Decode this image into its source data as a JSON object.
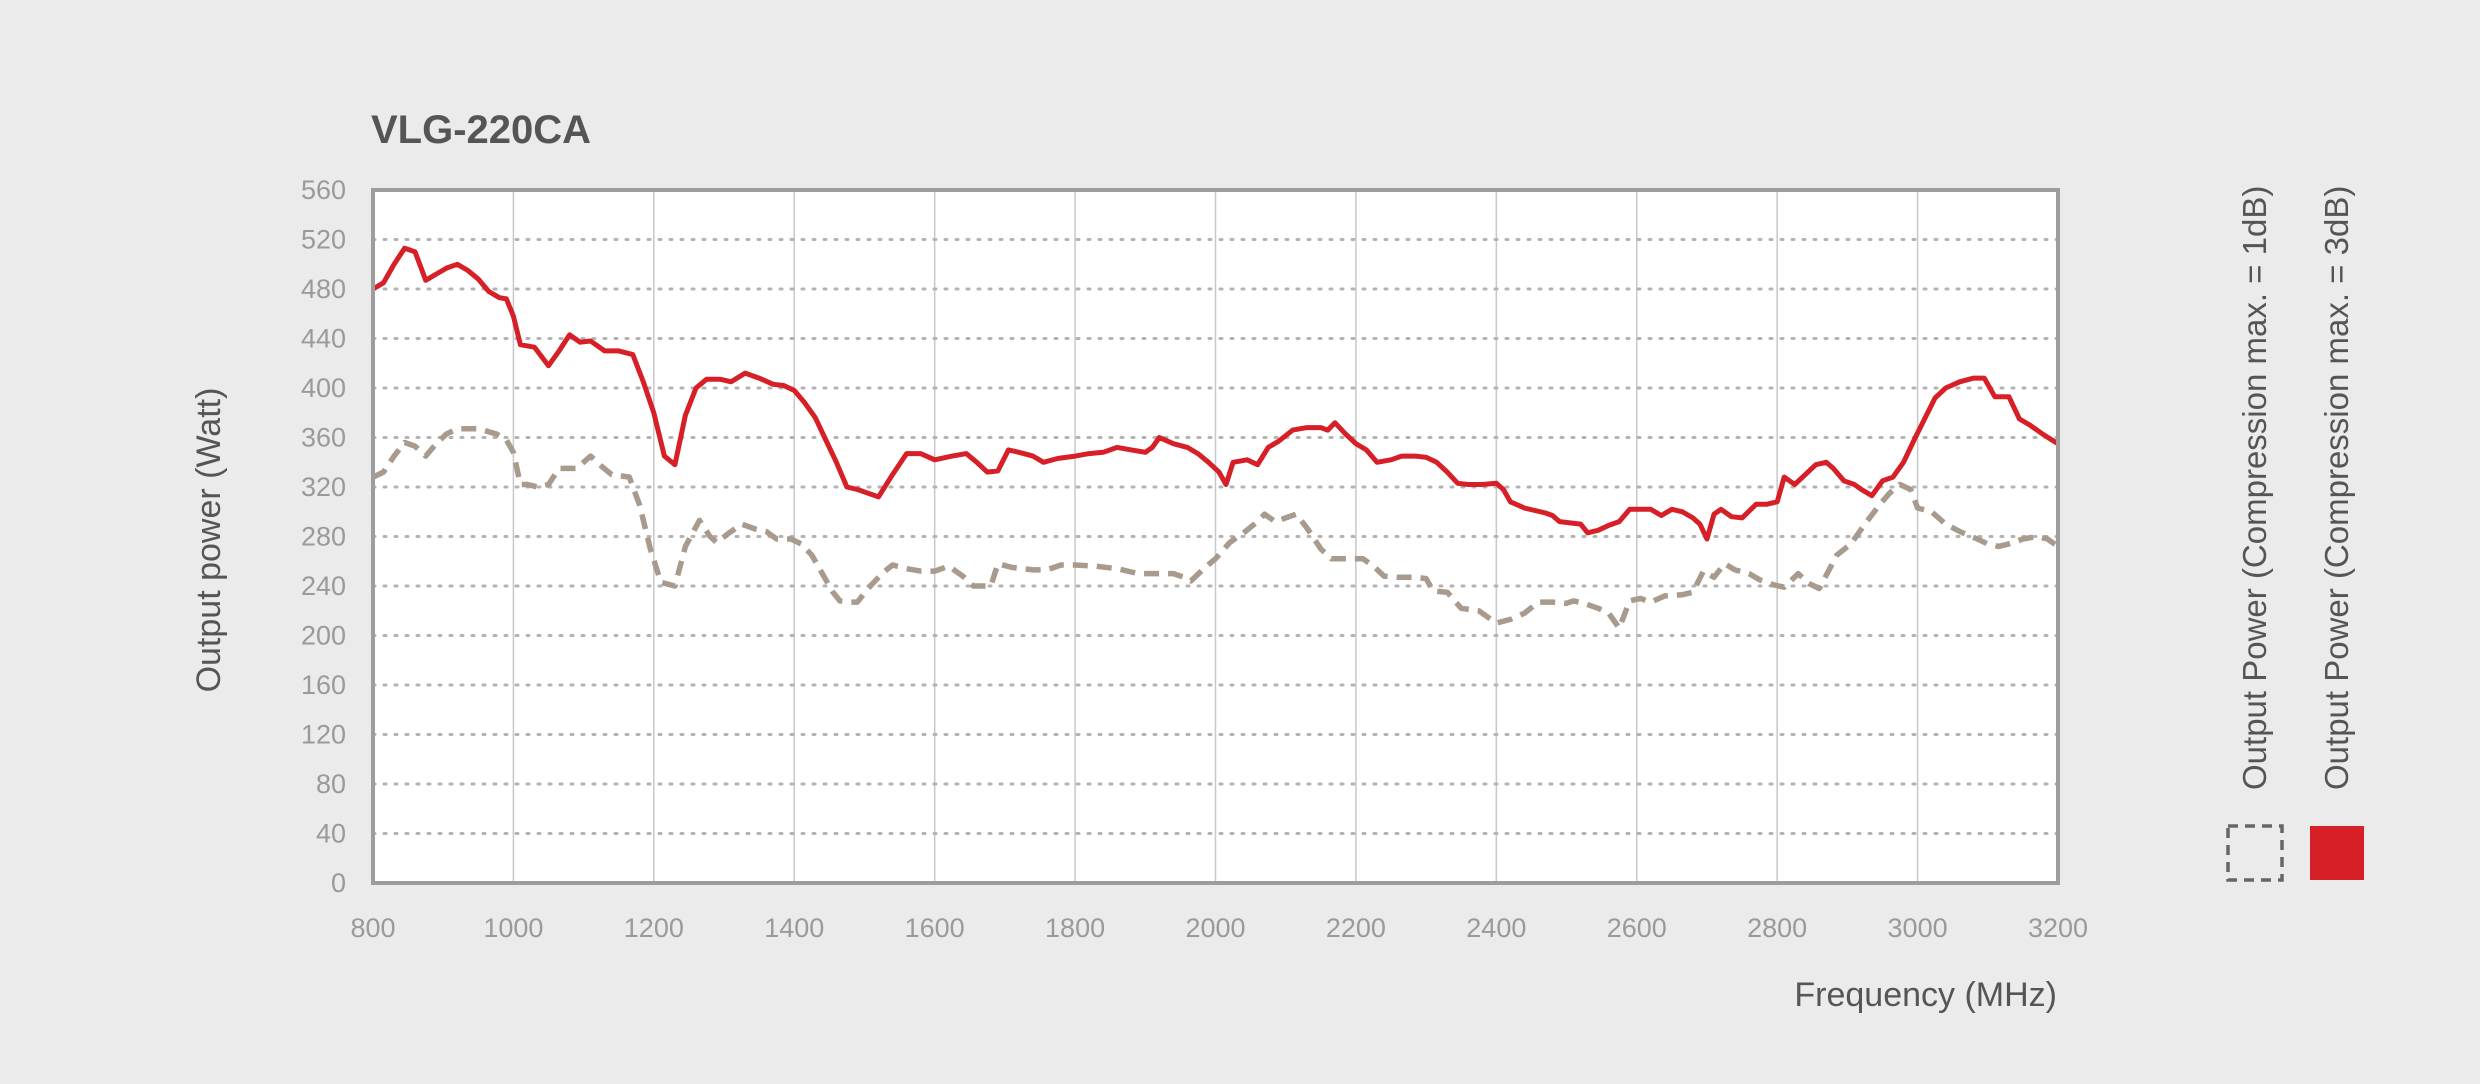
{
  "chart_data": {
    "type": "line",
    "title": "VLG-220CA",
    "xlabel": "Frequency (MHz)",
    "ylabel": "Output power (Watt)",
    "xlim": [
      800,
      3200
    ],
    "ylim": [
      0,
      560
    ],
    "x_ticks": [
      "800",
      "1000",
      "1200",
      "1400",
      "1600",
      "1800",
      "2000",
      "2200",
      "2400",
      "2600",
      "2800",
      "3000",
      "3200"
    ],
    "y_ticks": [
      "0",
      "40",
      "80",
      "120",
      "160",
      "200",
      "240",
      "280",
      "320",
      "360",
      "400",
      "440",
      "480",
      "520",
      "560"
    ],
    "grid": {
      "x": "solid",
      "y": "dotted"
    },
    "legend_position": "right, vertical",
    "series": [
      {
        "name": "Output Power (Compression max. = 1dB)",
        "color": "#a89a8d",
        "style": "dashed",
        "points": [
          [
            800,
            328
          ],
          [
            815,
            332
          ],
          [
            830,
            345
          ],
          [
            845,
            356
          ],
          [
            860,
            353
          ],
          [
            875,
            345
          ],
          [
            890,
            355
          ],
          [
            905,
            363
          ],
          [
            920,
            367
          ],
          [
            950,
            367
          ],
          [
            975,
            363
          ],
          [
            990,
            358
          ],
          [
            1000,
            348
          ],
          [
            1010,
            322
          ],
          [
            1020,
            322
          ],
          [
            1035,
            320
          ],
          [
            1050,
            322
          ],
          [
            1065,
            335
          ],
          [
            1090,
            335
          ],
          [
            1110,
            345
          ],
          [
            1125,
            337
          ],
          [
            1140,
            330
          ],
          [
            1165,
            328
          ],
          [
            1180,
            305
          ],
          [
            1195,
            270
          ],
          [
            1210,
            243
          ],
          [
            1230,
            240
          ],
          [
            1245,
            272
          ],
          [
            1265,
            293
          ],
          [
            1280,
            280
          ],
          [
            1290,
            275
          ],
          [
            1305,
            282
          ],
          [
            1325,
            290
          ],
          [
            1345,
            286
          ],
          [
            1360,
            284
          ],
          [
            1375,
            278
          ],
          [
            1395,
            278
          ],
          [
            1410,
            274
          ],
          [
            1425,
            265
          ],
          [
            1440,
            250
          ],
          [
            1455,
            235
          ],
          [
            1465,
            228
          ],
          [
            1480,
            227
          ],
          [
            1490,
            227
          ],
          [
            1505,
            238
          ],
          [
            1525,
            250
          ],
          [
            1540,
            257
          ],
          [
            1560,
            254
          ],
          [
            1580,
            252
          ],
          [
            1600,
            252
          ],
          [
            1620,
            256
          ],
          [
            1640,
            248
          ],
          [
            1655,
            240
          ],
          [
            1680,
            240
          ],
          [
            1690,
            258
          ],
          [
            1710,
            255
          ],
          [
            1740,
            253
          ],
          [
            1760,
            253
          ],
          [
            1780,
            257
          ],
          [
            1800,
            257
          ],
          [
            1830,
            256
          ],
          [
            1860,
            254
          ],
          [
            1890,
            250
          ],
          [
            1910,
            250
          ],
          [
            1930,
            250
          ],
          [
            1940,
            250
          ],
          [
            1955,
            247
          ],
          [
            1965,
            244
          ],
          [
            1985,
            255
          ],
          [
            2000,
            262
          ],
          [
            2020,
            275
          ],
          [
            2040,
            283
          ],
          [
            2060,
            292
          ],
          [
            2070,
            298
          ],
          [
            2085,
            292
          ],
          [
            2100,
            295
          ],
          [
            2115,
            298
          ],
          [
            2130,
            287
          ],
          [
            2150,
            270
          ],
          [
            2165,
            262
          ],
          [
            2185,
            262
          ],
          [
            2210,
            262
          ],
          [
            2225,
            256
          ],
          [
            2240,
            248
          ],
          [
            2260,
            247
          ],
          [
            2285,
            247
          ],
          [
            2300,
            246
          ],
          [
            2310,
            236
          ],
          [
            2330,
            235
          ],
          [
            2350,
            222
          ],
          [
            2375,
            220
          ],
          [
            2385,
            216
          ],
          [
            2400,
            210
          ],
          [
            2420,
            213
          ],
          [
            2440,
            218
          ],
          [
            2460,
            227
          ],
          [
            2480,
            227
          ],
          [
            2500,
            226
          ],
          [
            2510,
            228
          ],
          [
            2525,
            226
          ],
          [
            2545,
            222
          ],
          [
            2560,
            218
          ],
          [
            2575,
            206
          ],
          [
            2590,
            228
          ],
          [
            2605,
            230
          ],
          [
            2620,
            227
          ],
          [
            2640,
            232
          ],
          [
            2665,
            233
          ],
          [
            2680,
            235
          ],
          [
            2695,
            252
          ],
          [
            2710,
            247
          ],
          [
            2725,
            258
          ],
          [
            2740,
            253
          ],
          [
            2760,
            250
          ],
          [
            2775,
            245
          ],
          [
            2795,
            241
          ],
          [
            2810,
            239
          ],
          [
            2830,
            250
          ],
          [
            2845,
            242
          ],
          [
            2860,
            238
          ],
          [
            2885,
            265
          ],
          [
            2905,
            274
          ],
          [
            2925,
            290
          ],
          [
            2945,
            305
          ],
          [
            2960,
            315
          ],
          [
            2975,
            322
          ],
          [
            2990,
            318
          ],
          [
            3000,
            303
          ],
          [
            3020,
            300
          ],
          [
            3040,
            290
          ],
          [
            3060,
            284
          ],
          [
            3085,
            278
          ],
          [
            3100,
            274
          ],
          [
            3115,
            272
          ],
          [
            3130,
            274
          ],
          [
            3150,
            278
          ],
          [
            3170,
            280
          ],
          [
            3185,
            278
          ],
          [
            3200,
            272
          ]
        ]
      },
      {
        "name": "Output Power (Compression max. = 3dB)",
        "color": "#d71f27",
        "style": "solid",
        "points": [
          [
            800,
            480
          ],
          [
            815,
            485
          ],
          [
            830,
            500
          ],
          [
            845,
            513
          ],
          [
            860,
            510
          ],
          [
            875,
            487
          ],
          [
            890,
            492
          ],
          [
            905,
            497
          ],
          [
            920,
            500
          ],
          [
            935,
            495
          ],
          [
            950,
            488
          ],
          [
            965,
            478
          ],
          [
            980,
            473
          ],
          [
            990,
            472
          ],
          [
            1000,
            458
          ],
          [
            1010,
            435
          ],
          [
            1030,
            433
          ],
          [
            1050,
            418
          ],
          [
            1065,
            430
          ],
          [
            1080,
            443
          ],
          [
            1095,
            437
          ],
          [
            1110,
            438
          ],
          [
            1130,
            430
          ],
          [
            1150,
            430
          ],
          [
            1170,
            427
          ],
          [
            1185,
            405
          ],
          [
            1200,
            380
          ],
          [
            1215,
            345
          ],
          [
            1230,
            338
          ],
          [
            1245,
            378
          ],
          [
            1260,
            400
          ],
          [
            1275,
            407
          ],
          [
            1295,
            407
          ],
          [
            1310,
            405
          ],
          [
            1330,
            412
          ],
          [
            1350,
            408
          ],
          [
            1370,
            403
          ],
          [
            1385,
            402
          ],
          [
            1400,
            398
          ],
          [
            1415,
            388
          ],
          [
            1430,
            376
          ],
          [
            1445,
            358
          ],
          [
            1460,
            340
          ],
          [
            1475,
            320
          ],
          [
            1490,
            318
          ],
          [
            1505,
            315
          ],
          [
            1520,
            312
          ],
          [
            1540,
            330
          ],
          [
            1560,
            347
          ],
          [
            1580,
            347
          ],
          [
            1600,
            342
          ],
          [
            1625,
            345
          ],
          [
            1645,
            347
          ],
          [
            1660,
            340
          ],
          [
            1675,
            332
          ],
          [
            1690,
            333
          ],
          [
            1705,
            350
          ],
          [
            1720,
            348
          ],
          [
            1740,
            345
          ],
          [
            1755,
            340
          ],
          [
            1775,
            343
          ],
          [
            1800,
            345
          ],
          [
            1820,
            347
          ],
          [
            1840,
            348
          ],
          [
            1860,
            352
          ],
          [
            1880,
            350
          ],
          [
            1900,
            348
          ],
          [
            1910,
            352
          ],
          [
            1920,
            360
          ],
          [
            1940,
            355
          ],
          [
            1960,
            352
          ],
          [
            1975,
            347
          ],
          [
            1990,
            340
          ],
          [
            2005,
            332
          ],
          [
            2015,
            322
          ],
          [
            2025,
            340
          ],
          [
            2045,
            342
          ],
          [
            2060,
            338
          ],
          [
            2075,
            352
          ],
          [
            2090,
            357
          ],
          [
            2110,
            366
          ],
          [
            2130,
            368
          ],
          [
            2150,
            368
          ],
          [
            2160,
            366
          ],
          [
            2170,
            372
          ],
          [
            2185,
            363
          ],
          [
            2200,
            355
          ],
          [
            2215,
            350
          ],
          [
            2230,
            340
          ],
          [
            2250,
            342
          ],
          [
            2265,
            345
          ],
          [
            2285,
            345
          ],
          [
            2300,
            344
          ],
          [
            2315,
            340
          ],
          [
            2330,
            332
          ],
          [
            2345,
            323
          ],
          [
            2360,
            322
          ],
          [
            2380,
            322
          ],
          [
            2400,
            323
          ],
          [
            2410,
            318
          ],
          [
            2420,
            308
          ],
          [
            2440,
            303
          ],
          [
            2455,
            301
          ],
          [
            2470,
            299
          ],
          [
            2480,
            297
          ],
          [
            2490,
            292
          ],
          [
            2505,
            291
          ],
          [
            2520,
            290
          ],
          [
            2530,
            283
          ],
          [
            2545,
            285
          ],
          [
            2560,
            289
          ],
          [
            2575,
            292
          ],
          [
            2590,
            302
          ],
          [
            2605,
            302
          ],
          [
            2620,
            302
          ],
          [
            2635,
            297
          ],
          [
            2650,
            302
          ],
          [
            2665,
            300
          ],
          [
            2680,
            295
          ],
          [
            2690,
            290
          ],
          [
            2700,
            278
          ],
          [
            2710,
            298
          ],
          [
            2720,
            302
          ],
          [
            2735,
            296
          ],
          [
            2750,
            295
          ],
          [
            2770,
            306
          ],
          [
            2785,
            306
          ],
          [
            2800,
            308
          ],
          [
            2810,
            328
          ],
          [
            2825,
            322
          ],
          [
            2840,
            330
          ],
          [
            2855,
            338
          ],
          [
            2870,
            340
          ],
          [
            2880,
            335
          ],
          [
            2895,
            325
          ],
          [
            2910,
            322
          ],
          [
            2920,
            318
          ],
          [
            2935,
            313
          ],
          [
            2950,
            325
          ],
          [
            2965,
            328
          ],
          [
            2980,
            340
          ],
          [
            2995,
            358
          ],
          [
            3010,
            375
          ],
          [
            3025,
            392
          ],
          [
            3040,
            400
          ],
          [
            3060,
            405
          ],
          [
            3080,
            408
          ],
          [
            3095,
            408
          ],
          [
            3110,
            393
          ],
          [
            3130,
            393
          ],
          [
            3145,
            375
          ],
          [
            3160,
            370
          ],
          [
            3180,
            362
          ],
          [
            3200,
            355
          ]
        ]
      }
    ]
  }
}
